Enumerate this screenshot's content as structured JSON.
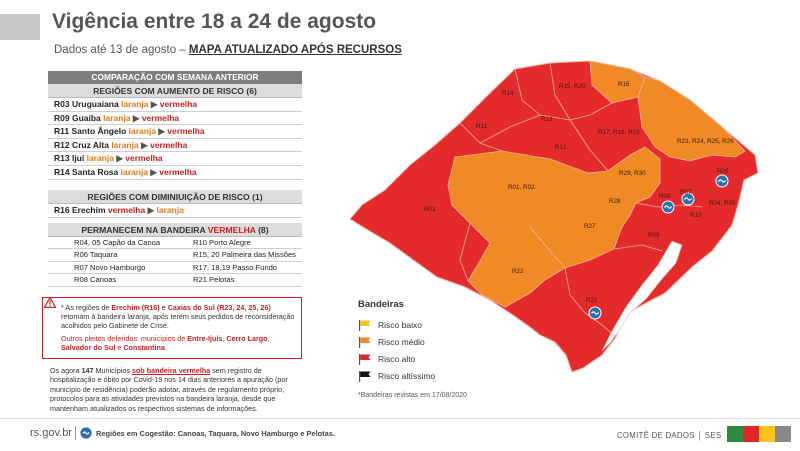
{
  "header": {
    "title": "Vigência entre 18 a 24 de agosto",
    "subtitle_prefix": "Dados até 13 de agosto –",
    "subtitle_link": "MAPA ATUALIZADO APÓS RECURSOS"
  },
  "comparison": {
    "title": "COMPARAÇÃO COM SEMANA ANTERIOR",
    "increase_title": "REGIÕES COM AUMENTO DE RISCO (6)",
    "increase": [
      {
        "region": "R03 Uruguaiana",
        "from": "laranja",
        "to": "vermelha"
      },
      {
        "region": "R09 Guaíba",
        "from": "laranja",
        "to": "vermelha"
      },
      {
        "region": "R11 Santo Ângelo",
        "from": "laranja",
        "to": "vermelha"
      },
      {
        "region": "R12 Cruz Alta",
        "from": "laranja",
        "to": "vermelha"
      },
      {
        "region": "R13 Ijuí",
        "from": "laranja",
        "to": "vermelha"
      },
      {
        "region": "R14 Santa Rosa",
        "from": "laranja",
        "to": "vermelha"
      }
    ],
    "decrease_title": "REGIÕES COM DIMINIUIÇÃO DE RISCO (1)",
    "decrease": [
      {
        "region": "R16 Erechim",
        "from": "vermelha",
        "to": "laranja"
      }
    ],
    "remain_title_prefix": "PERMANECEM NA BANDEIRA ",
    "remain_title_color": "VERMELHA",
    "remain_title_suffix": " (8)",
    "remain": [
      "R04, 05 Capão da Canoa",
      "R10 Porto Alegre",
      "R06 Taquara",
      "R15, 20 Palmeira das Missões",
      "R07 Novo Hamburgo",
      "R17, 18,19 Passo Fundo",
      "R08 Canoas",
      "R21 Pelotas"
    ]
  },
  "note": {
    "p1_a": "* As regiões de ",
    "p1_b": "Erechim (R16)",
    "p1_c": " e ",
    "p1_d": "Caxias do Sul (R23, 24, 25, 26)",
    "p1_e": " retomam à bandeira laranja, após terem seus pedidos de reconsideração acolhidos pelo Gabinete de Crise.",
    "p2_a": "Outros pleitos deferidos: municípios de ",
    "p2_b": "Entre-Ijuís",
    "p2_c": ", ",
    "p2_d": "Cerro Largo",
    "p2_e": ", ",
    "p2_f": "Salvador do Sul",
    "p2_g": " e ",
    "p2_h": "Constantina",
    "p2_i": "."
  },
  "bottom": {
    "a": "Os agora ",
    "b": "147",
    "c": " Municípios ",
    "d": "sob bandeira vermelha",
    "e": " sem registro de hospitalização e óbito por Covid-19 nos 14 dias anteriores a apuração (por município de residência) poderão adotar, através de regulamento próprio, protocolos para as atividades previstos na bandeira laranja, desde que mantenham atualizados os respectivos sistemas de informações."
  },
  "legend": {
    "title": "Bandeiras",
    "items": [
      {
        "label": "Risco baixo",
        "color": "#f5c518"
      },
      {
        "label": "Risco médio",
        "color": "#f08a24"
      },
      {
        "label": "Risco alto",
        "color": "#e0262b"
      },
      {
        "label": "Risco altíssimo",
        "color": "#111111"
      }
    ],
    "revised": "*Bandeiras revistas em 17/08/2020"
  },
  "map": {
    "colors": {
      "red": "#e42a2a",
      "orange": "#f08a24",
      "border": "#f6b2a0",
      "lake": "#ffffff"
    },
    "labels": {
      "R14": "R14",
      "R15R20": "R15, R20",
      "R16": "R16",
      "R11": "R11",
      "R13": "R13",
      "R12": "R12",
      "R171819": "R17, R18, R19",
      "R23to26": "R23, R24, R25, R26",
      "R01R02": "R01, R02",
      "R2930": "R29, R30",
      "R06": "R06",
      "R07": "R07",
      "R08": "R08",
      "R10": "R10",
      "R04R05": "R04, R05",
      "R03": "R03",
      "R28": "R28",
      "R27": "R27",
      "R09": "R09",
      "R22": "R22",
      "R21": "R21"
    }
  },
  "footer": {
    "site": "rs.gov.br",
    "cogestao": "Regiões em Cogestão: Canoas, Taquara, Novo Hamburgo e Pelotas.",
    "comite": "COMITÊ DE DADOS │ SES",
    "stripe_colors": [
      "#2e8b3e",
      "#e0262b",
      "#f5c518",
      "#888888"
    ]
  }
}
